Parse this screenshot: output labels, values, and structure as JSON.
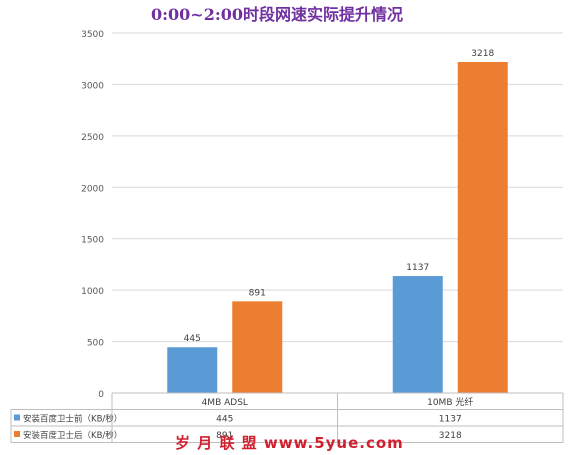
{
  "chart_data": {
    "type": "bar",
    "title": "0:00~2:00时段网速实际提升情况",
    "categories": [
      "4MB ADSL",
      "10MB 光纤"
    ],
    "series": [
      {
        "name": "安装百度卫士前（KB/秒）",
        "values": [
          445,
          1137
        ],
        "color": "#5b9bd5"
      },
      {
        "name": "安装百度卫士后（KB/秒）",
        "values": [
          891,
          3218
        ],
        "color": "#ed7d31"
      }
    ],
    "ylim": [
      0,
      3500
    ],
    "yticks": [
      0,
      500,
      1000,
      1500,
      2000,
      2500,
      3000,
      3500
    ],
    "grid": true,
    "legend": "data-table",
    "title_color": "#7030a0"
  },
  "watermark": "岁 月 联 盟  www.5yue.com"
}
